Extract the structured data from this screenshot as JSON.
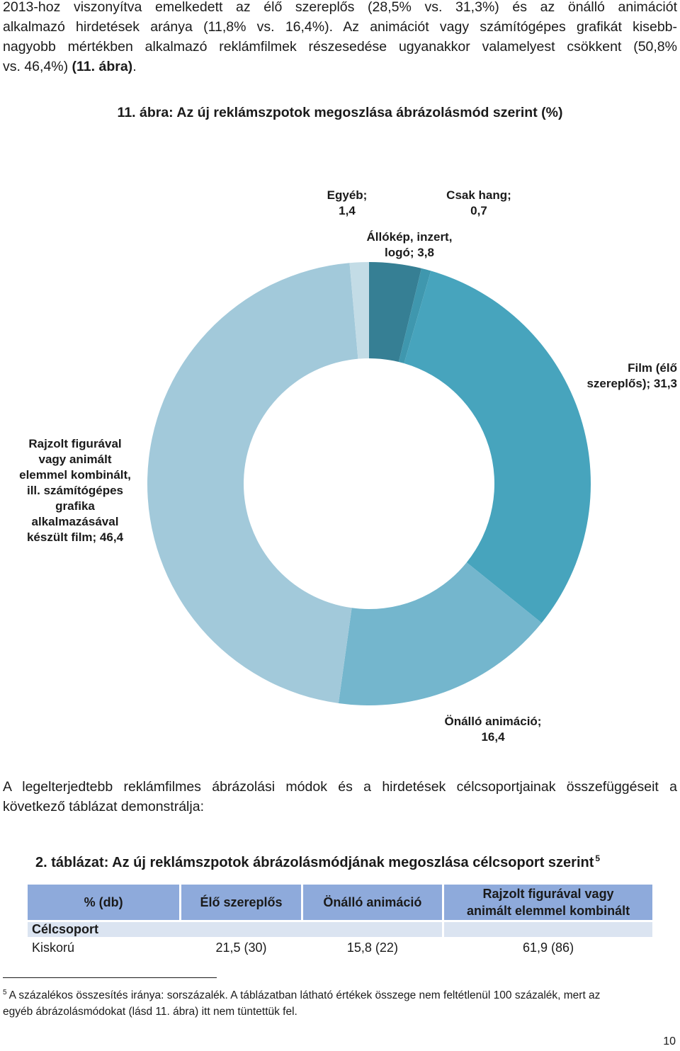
{
  "intro_paragraph": {
    "lines": [
      "2013-hoz viszonyítva emelkedett az élő szereplős (28,5% vs. 31,3%) és az önálló animációt",
      "alkalmazó hirdetések aránya (11,8% vs. 16,4%). Az animációt vagy számítógépes grafikát kisebb-",
      "nagyobb mértékben alkalmazó reklámfilmek részesedése ugyanakkor valamelyest csökkent (50,8%"
    ],
    "last_line_prefix": "vs. 46,4%) ",
    "last_line_ref": "(11. ábra)",
    "last_line_suffix": "."
  },
  "figure": {
    "title": "11. ábra: Az új reklámszpotok megoszlása ábrázolásmód szerint (%)"
  },
  "chart_data": {
    "type": "pie",
    "donut": true,
    "title": "11. ábra: Az új reklámszpotok megoszlása ábrázolásmód szerint (%)",
    "start": "top",
    "direction": "clockwise",
    "slices": [
      {
        "label": "Állókép, inzert, logó",
        "value": 3.8,
        "color": "#367f94"
      },
      {
        "label": "Csak hang",
        "value": 0.7,
        "color": "#3f97ae"
      },
      {
        "label": "Film (élő szereplős)",
        "value": 31.3,
        "color": "#47a4bd"
      },
      {
        "label": "Önálló animáció",
        "value": 16.4,
        "color": "#74b6cd"
      },
      {
        "label": "Rajzolt figurával vagy animált elemmel kombinált, ill. számítógépes grafika alkalmazásával készült film",
        "value": 46.4,
        "color": "#a2c9da"
      },
      {
        "label": "Egyéb",
        "value": 1.4,
        "color": "#c3dce6"
      }
    ],
    "data_labels": {
      "egyeb": "Egyéb;\n1,4",
      "csak_hang": "Csak hang;\n0,7",
      "allokep": "Állókép, inzert,\nlogó; 3,8",
      "film": "Film (élő\nszereplős); 31,3",
      "rajzolt": "Rajzolt figurával\nvagy animált\nelemmel kombinált,\nill. számítógépes\ngrafika\nalkalmazásával\nkészült film; 46,4",
      "onallo": "Önálló animáció;\n16,4"
    }
  },
  "middle_paragraph": {
    "line1": "A legelterjedtebb reklámfilmes ábrázolási módok és a hirdetések célcsoportjainak összefüggéseit a",
    "line2": "következő táblázat demonstrálja:"
  },
  "table": {
    "title": "2. táblázat: Az új reklámszpotok ábrázolásmódjának megoszlása célcsoport szerint",
    "title_footnote_mark": "5",
    "headers": {
      "col0": "% (db)",
      "col1": "Élő szereplős",
      "col2": "Önálló animáció",
      "col3_line1": "Rajzolt figurával vagy",
      "col3_line2": "animált elemmel kombinált"
    },
    "subheader": "Célcsoport",
    "rows": [
      {
        "label": "Kiskorú",
        "c1": "21,5 (30)",
        "c2": "15,8 (22)",
        "c3": "61,9 (86)"
      }
    ]
  },
  "footnote": {
    "mark": "5",
    "line1": "A százalékos összesítés iránya: sorszázalék. A táblázatban látható értékek összege nem feltétlenül 100 százalék, mert az",
    "line2": "egyéb ábrázolásmódokat (lásd 11. ábra) itt nem tüntettük fel."
  },
  "page_number": "10"
}
